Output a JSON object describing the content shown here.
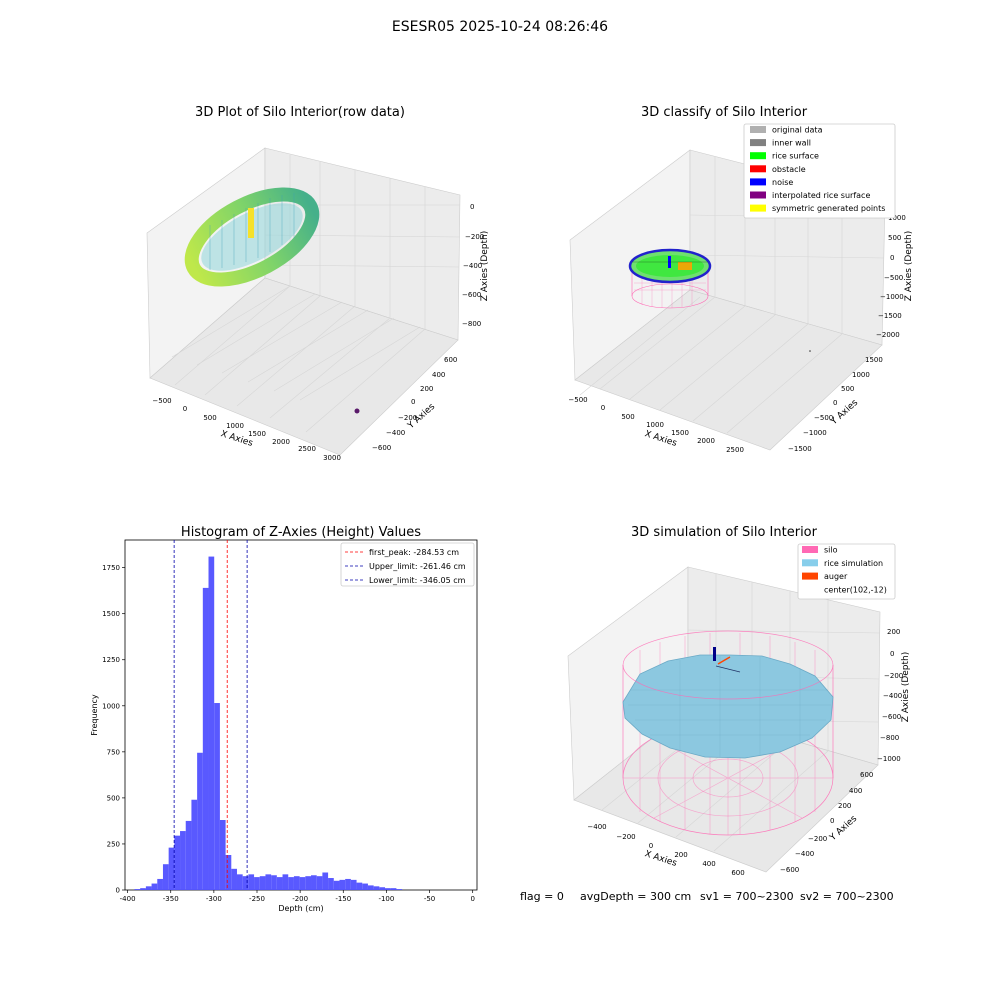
{
  "figure": {
    "title": "ESESR05 2025-10-24 08:26:46",
    "status": {
      "flag": "flag = 0",
      "avg_depth": "avgDepth = 300 cm",
      "sv1": "sv1 = 700~2300",
      "sv2": "sv2 = 700~2300"
    }
  },
  "colors": {
    "hist_bar": "#5050ff",
    "peak_line": "#ff0000",
    "limit_line": "#0000aa",
    "silo": "#ff69b4",
    "rice_sim": "#87ceeb",
    "auger": "#ff4500",
    "gridpane": "#f2f2f2",
    "grid": "#d8d8d8"
  },
  "chart_data": [
    {
      "type": "scatter3d",
      "title": "3D Plot of Silo Interior(row data)",
      "xlabel": "X Axies",
      "ylabel": "Y Axies",
      "zlabel": "Z Axies (Depth)",
      "x_ticks": [
        "−500",
        "0",
        "500",
        "1000",
        "1500",
        "2000",
        "2500",
        "3000"
      ],
      "y_ticks": [
        "−600",
        "−400",
        "−200",
        "0",
        "200",
        "400",
        "600"
      ],
      "z_ticks": [
        "0",
        "−200",
        "−400",
        "−600",
        "−800"
      ]
    },
    {
      "type": "scatter3d",
      "title": "3D classify of Silo Interior",
      "xlabel": "X Axies",
      "ylabel": "Y Axies",
      "zlabel": "Z Axies (Depth)",
      "x_ticks": [
        "−500",
        "0",
        "500",
        "1000",
        "1500",
        "2000",
        "2500"
      ],
      "y_ticks": [
        "−1500",
        "−1000",
        "−500",
        "0",
        "500",
        "1000",
        "1500"
      ],
      "z_ticks": [
        "1000",
        "500",
        "0",
        "−500",
        "−1000",
        "−1500",
        "−2000"
      ],
      "legend": [
        {
          "label": "original data",
          "color": "#b0b0b0"
        },
        {
          "label": "inner wall",
          "color": "#808080"
        },
        {
          "label": "rice surface",
          "color": "#00ff00"
        },
        {
          "label": "obstacle",
          "color": "#ff0000"
        },
        {
          "label": "noise",
          "color": "#0000ff"
        },
        {
          "label": "interpolated rice surface",
          "color": "#800080"
        },
        {
          "label": "symmetric generated points",
          "color": "#ffff00"
        }
      ]
    },
    {
      "type": "bar",
      "title": "Histogram of Z-Axies (Height) Values",
      "xlabel": "Depth (cm)",
      "ylabel": "Frequency",
      "xlim": [
        -403,
        5
      ],
      "ylim": [
        0,
        1900
      ],
      "x_ticks": [
        -400,
        -350,
        -300,
        -250,
        -200,
        -150,
        -100,
        -50,
        0
      ],
      "y_ticks": [
        0,
        250,
        500,
        750,
        1000,
        1250,
        1500,
        1750
      ],
      "bin_start": -392,
      "bin_width": 6.6,
      "values": [
        5,
        10,
        20,
        35,
        60,
        140,
        230,
        295,
        320,
        375,
        490,
        745,
        1640,
        1810,
        1015,
        380,
        190,
        115,
        85,
        75,
        85,
        70,
        75,
        85,
        80,
        70,
        85,
        70,
        75,
        70,
        75,
        80,
        75,
        95,
        65,
        50,
        55,
        60,
        55,
        40,
        35,
        25,
        20,
        15,
        10,
        10,
        5
      ],
      "lines": [
        {
          "label": "first_peak: -284.53 cm",
          "x": -284.53,
          "color": "#ff0000"
        },
        {
          "label": "Upper_limit: -261.46 cm",
          "x": -261.46,
          "color": "#0000aa"
        },
        {
          "label": "Lower_limit: -346.05 cm",
          "x": -346.05,
          "color": "#0000aa"
        }
      ]
    },
    {
      "type": "surface3d",
      "title": "3D simulation of Silo Interior",
      "xlabel": "X Axies",
      "ylabel": "Y Axies",
      "zlabel": "Z Axies (Depth)",
      "x_ticks": [
        "−400",
        "−200",
        "0",
        "200",
        "400",
        "600"
      ],
      "y_ticks": [
        "−600",
        "−400",
        "−200",
        "0",
        "200",
        "400",
        "600"
      ],
      "z_ticks": [
        "200",
        "0",
        "−200",
        "−400",
        "−600",
        "−800",
        "−1000"
      ],
      "legend": [
        {
          "label": "silo",
          "color": "#ff69b4"
        },
        {
          "label": "rice simulation",
          "color": "#87ceeb"
        },
        {
          "label": "auger",
          "color": "#ff4500"
        },
        {
          "label": "center(102,-12)",
          "color": ""
        }
      ]
    }
  ]
}
